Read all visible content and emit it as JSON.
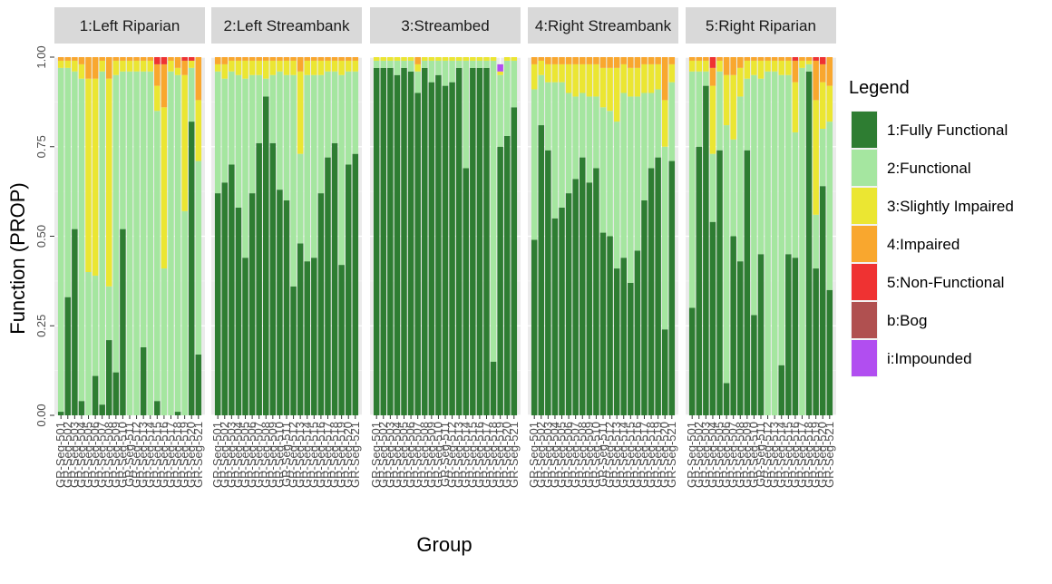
{
  "chart_data": {
    "type": "bar",
    "stacked": true,
    "facets": [
      "1:Left Riparian",
      "2:Left Streambank",
      "3:Streambed",
      "4:Right Streambank",
      "5:Right Riparian"
    ],
    "xlabel": "Group",
    "ylabel": "Function (PROP)",
    "ylim": [
      0,
      1
    ],
    "yticks": [
      "0.00",
      "0.25",
      "0.50",
      "0.75",
      "1.00"
    ],
    "grid": true,
    "legend_position": "right",
    "categories": [
      "GR-Seg-501",
      "GR-Seg-502",
      "GR-Seg-503",
      "GR-Seg-504",
      "GR-Seg-505",
      "GR-Seg-506",
      "GR-Seg-507",
      "GR-Seg-508",
      "GR-Seg-509",
      "GR-Seg-510",
      "GR-Seg-511",
      "GR-Seg-512",
      "GR-Seg-513",
      "GR-Seg-514",
      "GR-Seg-515",
      "GR-Seg-516",
      "GR-Seg-517",
      "GR-Seg-518",
      "GR-Seg-519",
      "GR-Seg-520",
      "GR-Seg-521"
    ],
    "legend": {
      "title": "Legend",
      "items": [
        {
          "key": "1:Fully Functional",
          "label": "1:Fully Functional",
          "color": "#2e7d32"
        },
        {
          "key": "2:Functional",
          "label": "2:Functional",
          "color": "#a5e6a0"
        },
        {
          "key": "3:Slightly Impaired",
          "label": "3:Slightly Impaired",
          "color": "#ebe632"
        },
        {
          "key": "4:Impaired",
          "label": "4:Impaired",
          "color": "#f9a72e"
        },
        {
          "key": "5:Non-Functional",
          "label": "5:Non-Functional",
          "color": "#ef3232"
        },
        {
          "key": "b:Bog",
          "label": "b:Bog",
          "color": "#b05050"
        },
        {
          "key": "i:Impounded",
          "label": "i:Impounded",
          "color": "#b14ef0"
        }
      ]
    },
    "panels": [
      {
        "facet": "1:Left Riparian",
        "bars": [
          [
            0.01,
            0.96,
            0.02,
            0.01,
            0,
            0,
            0
          ],
          [
            0.33,
            0.64,
            0.02,
            0.01,
            0,
            0,
            0
          ],
          [
            0.52,
            0.44,
            0.03,
            0.01,
            0,
            0,
            0
          ],
          [
            0.04,
            0.9,
            0.04,
            0.02,
            0,
            0,
            0
          ],
          [
            0,
            0.4,
            0.54,
            0.06,
            0,
            0,
            0
          ],
          [
            0.11,
            0.28,
            0.55,
            0.06,
            0,
            0,
            0
          ],
          [
            0.03,
            0.93,
            0.03,
            0.01,
            0,
            0,
            0
          ],
          [
            0.21,
            0.15,
            0.58,
            0.06,
            0,
            0,
            0
          ],
          [
            0.12,
            0.83,
            0.04,
            0.01,
            0,
            0,
            0
          ],
          [
            0.52,
            0.44,
            0.03,
            0.01,
            0,
            0,
            0
          ],
          [
            0,
            0.96,
            0.03,
            0.01,
            0,
            0,
            0
          ],
          [
            0,
            0.96,
            0.03,
            0.01,
            0,
            0,
            0
          ],
          [
            0.19,
            0.77,
            0.03,
            0.01,
            0,
            0,
            0
          ],
          [
            0,
            0.96,
            0.03,
            0.01,
            0,
            0,
            0
          ],
          [
            0.04,
            0.81,
            0.07,
            0.06,
            0.02,
            0,
            0
          ],
          [
            0,
            0.41,
            0.45,
            0.12,
            0.02,
            0,
            0
          ],
          [
            0,
            0.96,
            0.03,
            0.01,
            0,
            0,
            0
          ],
          [
            0.01,
            0.94,
            0.02,
            0.03,
            0,
            0,
            0
          ],
          [
            0,
            0.57,
            0.38,
            0.04,
            0.01,
            0,
            0
          ],
          [
            0.82,
            0.15,
            0.02,
            0,
            0.01,
            0,
            0
          ],
          [
            0.17,
            0.54,
            0.17,
            0.12,
            0,
            0,
            0
          ]
        ]
      },
      {
        "facet": "2:Left Streambank",
        "bars": [
          [
            0.62,
            0.34,
            0.02,
            0.02,
            0,
            0,
            0
          ],
          [
            0.65,
            0.29,
            0.04,
            0.02,
            0,
            0,
            0
          ],
          [
            0.7,
            0.26,
            0.03,
            0.01,
            0,
            0,
            0
          ],
          [
            0.58,
            0.37,
            0.04,
            0.01,
            0,
            0,
            0
          ],
          [
            0.44,
            0.5,
            0.05,
            0.01,
            0,
            0,
            0
          ],
          [
            0.62,
            0.33,
            0.04,
            0.01,
            0,
            0,
            0
          ],
          [
            0.76,
            0.19,
            0.04,
            0.01,
            0,
            0,
            0
          ],
          [
            0.89,
            0.05,
            0.05,
            0.01,
            0,
            0,
            0
          ],
          [
            0.76,
            0.19,
            0.04,
            0.01,
            0,
            0,
            0
          ],
          [
            0.63,
            0.33,
            0.03,
            0.01,
            0,
            0,
            0
          ],
          [
            0.6,
            0.35,
            0.04,
            0.01,
            0,
            0,
            0
          ],
          [
            0.36,
            0.59,
            0.04,
            0.01,
            0,
            0,
            0
          ],
          [
            0.48,
            0.25,
            0.23,
            0.04,
            0,
            0,
            0
          ],
          [
            0.43,
            0.52,
            0.04,
            0.01,
            0,
            0,
            0
          ],
          [
            0.44,
            0.51,
            0.04,
            0.01,
            0,
            0,
            0
          ],
          [
            0.62,
            0.33,
            0.04,
            0.01,
            0,
            0,
            0
          ],
          [
            0.72,
            0.24,
            0.03,
            0.01,
            0,
            0,
            0
          ],
          [
            0.76,
            0.2,
            0.03,
            0.01,
            0,
            0,
            0
          ],
          [
            0.42,
            0.53,
            0.04,
            0.01,
            0,
            0,
            0
          ],
          [
            0.7,
            0.26,
            0.03,
            0.01,
            0,
            0,
            0
          ],
          [
            0.73,
            0.23,
            0.03,
            0.01,
            0,
            0,
            0
          ]
        ]
      },
      {
        "facet": "3:Streambed",
        "bars": [
          [
            0.97,
            0.02,
            0.01,
            0,
            0,
            0,
            0
          ],
          [
            0.97,
            0.02,
            0.01,
            0,
            0,
            0,
            0
          ],
          [
            0.97,
            0.02,
            0.01,
            0,
            0,
            0,
            0
          ],
          [
            0.95,
            0.04,
            0.01,
            0,
            0,
            0,
            0
          ],
          [
            0.97,
            0.02,
            0.01,
            0,
            0,
            0,
            0
          ],
          [
            0.96,
            0.03,
            0.01,
            0,
            0,
            0,
            0
          ],
          [
            0.9,
            0.06,
            0.02,
            0.02,
            0,
            0,
            0
          ],
          [
            0.97,
            0.02,
            0.01,
            0,
            0,
            0,
            0
          ],
          [
            0.93,
            0.06,
            0.01,
            0,
            0,
            0,
            0
          ],
          [
            0.95,
            0.04,
            0.01,
            0,
            0,
            0,
            0
          ],
          [
            0.92,
            0.07,
            0.01,
            0,
            0,
            0,
            0
          ],
          [
            0.93,
            0.06,
            0.01,
            0,
            0,
            0,
            0
          ],
          [
            0.97,
            0.02,
            0.01,
            0,
            0,
            0,
            0
          ],
          [
            0.69,
            0.3,
            0.01,
            0,
            0,
            0,
            0
          ],
          [
            0.97,
            0.02,
            0.01,
            0,
            0,
            0,
            0
          ],
          [
            0.97,
            0.02,
            0.01,
            0,
            0,
            0,
            0
          ],
          [
            0.97,
            0.02,
            0.01,
            0,
            0,
            0,
            0
          ],
          [
            0.15,
            0.84,
            0.01,
            0,
            0,
            0,
            0
          ],
          [
            0.75,
            0.2,
            0.01,
            0,
            0,
            0,
            0.02
          ],
          [
            0.78,
            0.21,
            0.01,
            0,
            0,
            0,
            0
          ],
          [
            0.86,
            0.13,
            0.01,
            0,
            0,
            0,
            0
          ]
        ]
      },
      {
        "facet": "4:Right Streambank",
        "bars": [
          [
            0.49,
            0.42,
            0.07,
            0.02,
            0,
            0,
            0
          ],
          [
            0.81,
            0.14,
            0.04,
            0.01,
            0,
            0,
            0
          ],
          [
            0.74,
            0.19,
            0.05,
            0.02,
            0,
            0,
            0
          ],
          [
            0.55,
            0.38,
            0.05,
            0.02,
            0,
            0,
            0
          ],
          [
            0.58,
            0.35,
            0.05,
            0.02,
            0,
            0,
            0
          ],
          [
            0.62,
            0.28,
            0.08,
            0.02,
            0,
            0,
            0
          ],
          [
            0.66,
            0.23,
            0.09,
            0.02,
            0,
            0,
            0
          ],
          [
            0.72,
            0.18,
            0.08,
            0.02,
            0,
            0,
            0
          ],
          [
            0.65,
            0.24,
            0.09,
            0.02,
            0,
            0,
            0
          ],
          [
            0.69,
            0.2,
            0.09,
            0.02,
            0,
            0,
            0
          ],
          [
            0.51,
            0.35,
            0.11,
            0.03,
            0,
            0,
            0
          ],
          [
            0.5,
            0.35,
            0.12,
            0.03,
            0,
            0,
            0
          ],
          [
            0.41,
            0.41,
            0.15,
            0.03,
            0,
            0,
            0
          ],
          [
            0.44,
            0.46,
            0.08,
            0.02,
            0,
            0,
            0
          ],
          [
            0.37,
            0.52,
            0.08,
            0.03,
            0,
            0,
            0
          ],
          [
            0.46,
            0.43,
            0.08,
            0.03,
            0,
            0,
            0
          ],
          [
            0.6,
            0.3,
            0.08,
            0.02,
            0,
            0,
            0
          ],
          [
            0.69,
            0.21,
            0.08,
            0.02,
            0,
            0,
            0
          ],
          [
            0.72,
            0.19,
            0.07,
            0.02,
            0,
            0,
            0
          ],
          [
            0.24,
            0.51,
            0.13,
            0.12,
            0,
            0,
            0
          ],
          [
            0.71,
            0.22,
            0.05,
            0.02,
            0,
            0,
            0
          ]
        ]
      },
      {
        "facet": "5:Right Riparian",
        "bars": [
          [
            0.3,
            0.66,
            0.03,
            0.01,
            0,
            0,
            0
          ],
          [
            0.75,
            0.21,
            0.03,
            0.01,
            0,
            0,
            0
          ],
          [
            0.92,
            0.04,
            0.03,
            0.01,
            0,
            0,
            0
          ],
          [
            0.54,
            0.19,
            0.19,
            0.05,
            0.03,
            0,
            0
          ],
          [
            0.74,
            0.22,
            0.03,
            0.01,
            0,
            0,
            0
          ],
          [
            0.09,
            0.72,
            0.14,
            0.05,
            0,
            0,
            0
          ],
          [
            0.5,
            0.27,
            0.18,
            0.05,
            0,
            0,
            0
          ],
          [
            0.43,
            0.46,
            0.08,
            0.03,
            0,
            0,
            0
          ],
          [
            0.74,
            0.2,
            0.05,
            0.01,
            0,
            0,
            0
          ],
          [
            0.28,
            0.67,
            0.04,
            0.01,
            0,
            0,
            0
          ],
          [
            0.45,
            0.49,
            0.05,
            0.01,
            0,
            0,
            0
          ],
          [
            0,
            0.96,
            0.03,
            0.01,
            0,
            0,
            0
          ],
          [
            0,
            0.96,
            0.03,
            0.01,
            0,
            0,
            0
          ],
          [
            0.14,
            0.81,
            0.04,
            0.01,
            0,
            0,
            0
          ],
          [
            0.45,
            0.5,
            0.04,
            0.01,
            0,
            0,
            0
          ],
          [
            0.44,
            0.35,
            0.14,
            0.06,
            0.01,
            0,
            0
          ],
          [
            0,
            0.97,
            0.02,
            0.01,
            0,
            0,
            0
          ],
          [
            0.96,
            0.02,
            0.01,
            0.01,
            0,
            0,
            0
          ],
          [
            0.41,
            0.15,
            0.32,
            0.11,
            0.01,
            0,
            0
          ],
          [
            0.64,
            0.16,
            0.13,
            0.05,
            0.02,
            0,
            0
          ],
          [
            0.35,
            0.47,
            0.1,
            0.08,
            0,
            0,
            0
          ]
        ]
      }
    ]
  }
}
